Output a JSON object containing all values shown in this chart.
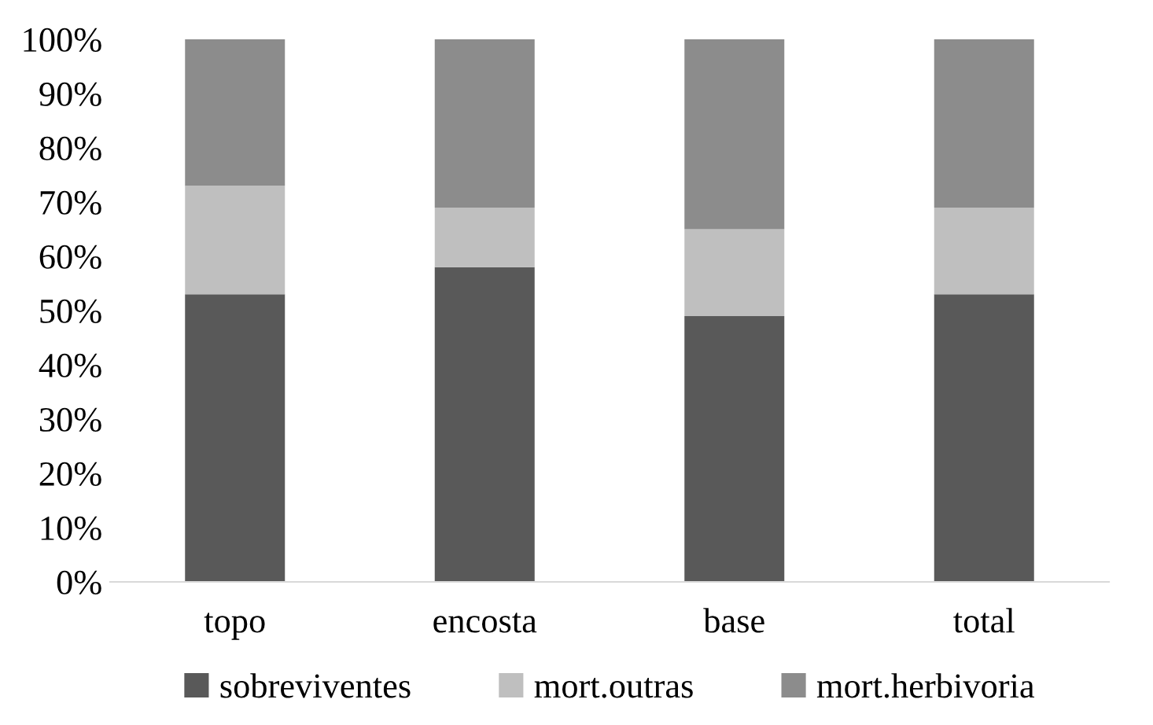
{
  "chart_data": {
    "type": "bar",
    "stacked": true,
    "categories": [
      "topo",
      "encosta",
      "base",
      "total"
    ],
    "series": [
      {
        "name": "sobreviventes",
        "color": "#595959",
        "values": [
          53,
          58,
          49,
          53
        ]
      },
      {
        "name": "mort.outras",
        "color": "#bfbfbf",
        "values": [
          20,
          11,
          16,
          16
        ]
      },
      {
        "name": "mort.herbivoria",
        "color": "#8c8c8c",
        "values": [
          27,
          31,
          35,
          31
        ]
      }
    ],
    "ylim": [
      0,
      100
    ],
    "yticks": [
      {
        "value": 0,
        "label": "0%"
      },
      {
        "value": 10,
        "label": "10%"
      },
      {
        "value": 20,
        "label": "20%"
      },
      {
        "value": 30,
        "label": "30%"
      },
      {
        "value": 40,
        "label": "40%"
      },
      {
        "value": 50,
        "label": "50%"
      },
      {
        "value": 60,
        "label": "60%"
      },
      {
        "value": 70,
        "label": "70%"
      },
      {
        "value": 80,
        "label": "80%"
      },
      {
        "value": 90,
        "label": "90%"
      },
      {
        "value": 100,
        "label": "100%"
      }
    ],
    "grid": false,
    "legend": "bottom"
  }
}
